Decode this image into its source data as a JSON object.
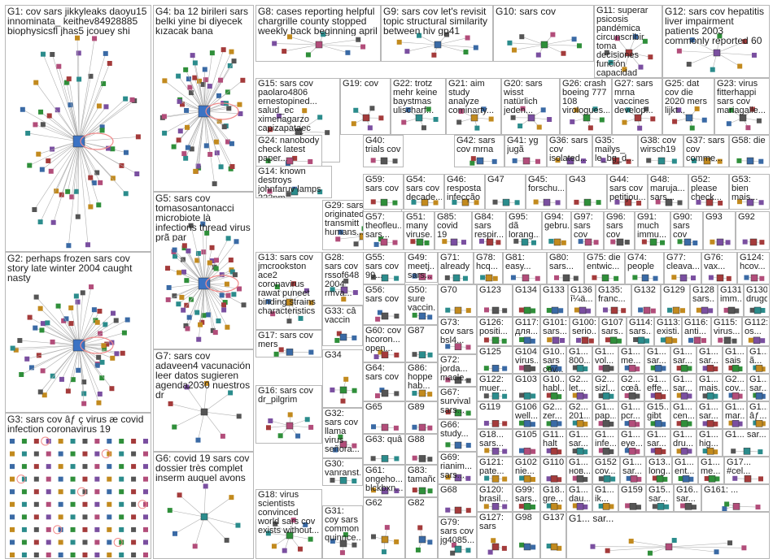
{
  "colors": {
    "edge": "#b0b0b0",
    "self_loop": "#f08a8a",
    "border": "#b8b8b8",
    "text": "#202020"
  },
  "groups": [
    {
      "id": "G1",
      "label": "G1: cov sars jikkyleaks daoyu15 innominata_ keithev84928885 biophysicsfl jhas5 jcouey shi"
    },
    {
      "id": "G2",
      "label": "G2: perhaps frozen sars cov story late winter 2004 caught nasty"
    },
    {
      "id": "G3",
      "label": "G3: sars cov âƒ ç virus æ covid infection coronavirus 19"
    },
    {
      "id": "G4",
      "label": "G4: ba 12 birileri sars belki yine bi diyecek kızacak bana"
    },
    {
      "id": "G5",
      "label": "G5: sars cov tomasosantonacci microbiote là infections thread virus prã par"
    },
    {
      "id": "G6",
      "label": "G6: covid 19 sars cov dossier très complet inserm auquel avons"
    },
    {
      "id": "G7",
      "label": "G7: sars cov adaveen4 vacunación leer datos sugieren agenda2030 nuestros dr"
    },
    {
      "id": "G8",
      "label": "G8: cases reporting helpful chargrille county stopped weekly back beginning april"
    },
    {
      "id": "G9",
      "label": "G9: sars cov let's revisit topic structural similarity between hiv gp41"
    },
    {
      "id": "G10",
      "label": "G10: sars cov"
    },
    {
      "id": "G11",
      "label": "G11: superar psicosis pandémica circunscribir toma decisiones función capacidad hospitalaria..."
    },
    {
      "id": "G12",
      "label": "G12: sars cov hepatitis liver impairment patients 2003 commonly reported 60"
    },
    {
      "id": "G13",
      "label": "G13: sars cov jmcrookston ace2 coronavirus rawat puneet binding strains characteristics"
    },
    {
      "id": "G14",
      "label": "G14: known destroys johnfaruv lamps 222nm don_milton drlapook umdpubliche..."
    },
    {
      "id": "G15",
      "label": "G15: sars cov paolaro4806 ernestopined... salud_ec ximenagarzo capizapataec marcosmolin..."
    },
    {
      "id": "G16",
      "label": "G16: sars cov dr_pilgrim"
    },
    {
      "id": "G17",
      "label": "G17: sars cov mers"
    },
    {
      "id": "G18",
      "label": "G18: virus scientists convinced world sars cov exists without..."
    },
    {
      "id": "G19",
      "label": "G19: cov"
    },
    {
      "id": "G20",
      "label": "G20: sars wisst natürlich jeden..."
    },
    {
      "id": "G21",
      "label": "G21: aim study analyze cominarty..."
    },
    {
      "id": "G22",
      "label": "G22: trotz mehr keine baystmas ulischarf..."
    },
    {
      "id": "G23",
      "label": "G23: virus fitterhappi sars cov mariagalle..."
    },
    {
      "id": "G24",
      "label": "G24: nanobody check latest paper..."
    },
    {
      "id": "G25",
      "label": "G25: dat cov die 2020 mers lijkt..."
    },
    {
      "id": "G26",
      "label": "G26: crash boeing 777 108 virologues..."
    },
    {
      "id": "G27",
      "label": "G27: sars mrna vaccines develop..."
    },
    {
      "id": "G28",
      "label": "G28: sars cov rssof648 2004 rmva..."
    },
    {
      "id": "G29",
      "label": "G29: sars cov originated transmitt humans..."
    },
    {
      "id": "G30",
      "label": "G30: vanranst..."
    },
    {
      "id": "G31",
      "label": "G31: coy sars common quinnce..."
    },
    {
      "id": "G32",
      "label": "G32: sars cov llama virus señora..."
    },
    {
      "id": "G33",
      "label": "G33: câ vaccin"
    },
    {
      "id": "G34",
      "label": "G34"
    },
    {
      "id": "G35",
      "label": "G35: mailys_ le_bg_d..."
    },
    {
      "id": "G36",
      "label": "G36: sars cov isolated..."
    },
    {
      "id": "G37",
      "label": "G37: sars cov comme..."
    },
    {
      "id": "G38",
      "label": "G38: cov wirsch19"
    },
    {
      "id": "G40",
      "label": "G40: trials cov"
    },
    {
      "id": "G41",
      "label": "G41: yg jugã"
    },
    {
      "id": "G42",
      "label": "G42: sars cov mrna"
    },
    {
      "id": "G43",
      "label": "G43"
    },
    {
      "id": "G44",
      "label": "G44: sars cov petitjou..."
    },
    {
      "id": "G45",
      "label": "G45: forschu..."
    },
    {
      "id": "G46",
      "label": "G46: resposta infecção"
    },
    {
      "id": "G47",
      "label": "G47"
    },
    {
      "id": "G48",
      "label": "G48: maruja... sars..."
    },
    {
      "id": "G49",
      "label": "G49: meetj... sars..."
    },
    {
      "id": "G50",
      "label": "G50: sure vaccin..."
    },
    {
      "id": "G51",
      "label": "G51: many viruse..."
    },
    {
      "id": "G52",
      "label": "G52: please check..."
    },
    {
      "id": "G53",
      "label": "G53: bien mais..."
    },
    {
      "id": "G54",
      "label": "G54: sars cov decade..."
    },
    {
      "id": "G55",
      "label": "G55: sars cov 99..."
    },
    {
      "id": "G56",
      "label": "G56: sars cov"
    },
    {
      "id": "G57",
      "label": "G57: theofleu... sars..."
    },
    {
      "id": "G58",
      "label": "G58: die"
    },
    {
      "id": "G59",
      "label": "G59: sars cov"
    },
    {
      "id": "G60",
      "label": "G60: cov hcoron... open..."
    },
    {
      "id": "G61",
      "label": "G61: ongeho... blckbxn..."
    },
    {
      "id": "G62",
      "label": "G62"
    },
    {
      "id": "G63",
      "label": "G63: quâ"
    },
    {
      "id": "G64",
      "label": "G64: sars cov"
    },
    {
      "id": "G65",
      "label": "G65"
    },
    {
      "id": "G66",
      "label": "G66: study..."
    },
    {
      "id": "G67",
      "label": "G67: survival sars..."
    },
    {
      "id": "G68",
      "label": "G68"
    },
    {
      "id": "G69",
      "label": "G69: rianim... sars..."
    },
    {
      "id": "G70",
      "label": "G70"
    },
    {
      "id": "G71",
      "label": "G71: already"
    },
    {
      "id": "G72",
      "label": "G72: jorda... macle..."
    },
    {
      "id": "G73",
      "label": "G73: cov sars bsl4..."
    },
    {
      "id": "G74",
      "label": "G74: people"
    },
    {
      "id": "G75",
      "label": "G75: die entwic..."
    },
    {
      "id": "G76",
      "label": "G76: vax..."
    },
    {
      "id": "G77",
      "label": "G77: cleava..."
    },
    {
      "id": "G78",
      "label": "G78: hcq..."
    },
    {
      "id": "G79",
      "label": "G79: sars cov jg4085..."
    },
    {
      "id": "G80",
      "label": "G80: sars..."
    },
    {
      "id": "G81",
      "label": "G81: easy..."
    },
    {
      "id": "G82",
      "label": "G82"
    },
    {
      "id": "G83",
      "label": "G83: tamaño"
    },
    {
      "id": "G84",
      "label": "G84: sars respir..."
    },
    {
      "id": "G85",
      "label": "G85: covid 19"
    },
    {
      "id": "G86",
      "label": "G86: hoppe hab..."
    },
    {
      "id": "G87",
      "label": "G87"
    },
    {
      "id": "G88",
      "label": "G88"
    },
    {
      "id": "G89",
      "label": "G89"
    },
    {
      "id": "G90",
      "label": "G90: sars cov"
    },
    {
      "id": "G91",
      "label": "G91: much immu..."
    },
    {
      "id": "G92",
      "label": "G92"
    },
    {
      "id": "G93",
      "label": "G93"
    },
    {
      "id": "G94",
      "label": "G94: gebru..."
    },
    {
      "id": "G95",
      "label": "G95: dã lorang..."
    },
    {
      "id": "G96",
      "label": "G96: sars cov"
    },
    {
      "id": "G97",
      "label": "G97: sars cov"
    },
    {
      "id": "G98",
      "label": "G98"
    },
    {
      "id": "G99",
      "label": "G99: sars..."
    },
    {
      "id": "G100",
      "label": "G100: serio..."
    },
    {
      "id": "G101",
      "label": "G101: sars..."
    },
    {
      "id": "G102",
      "label": "G102: nie..."
    },
    {
      "id": "G103",
      "label": "G103"
    },
    {
      "id": "G104",
      "label": "G104: virus..."
    },
    {
      "id": "G105",
      "label": "G105"
    },
    {
      "id": "G106",
      "label": "G106: well..."
    },
    {
      "id": "G107",
      "label": "G107: sars..."
    },
    {
      "id": "G110",
      "label": "G110"
    },
    {
      "id": "G112",
      "label": "G112: os..."
    },
    {
      "id": "G113",
      "label": "G113: existi..."
    },
    {
      "id": "G114",
      "label": "G114: sars..."
    },
    {
      "id": "G115",
      "label": "G115: virus..."
    },
    {
      "id": "G116",
      "label": "G116: anti..."
    },
    {
      "id": "G117",
      "label": "G117: для..."
    },
    {
      "id": "G118",
      "label": "G118: still..."
    },
    {
      "id": "G119",
      "label": "G119"
    },
    {
      "id": "G120",
      "label": "G120: brasil..."
    },
    {
      "id": "G121",
      "label": "G121: pate..."
    },
    {
      "id": "G122",
      "label": "G122: muer..."
    },
    {
      "id": "G123",
      "label": "G123"
    },
    {
      "id": "G124",
      "label": "G124: hcov..."
    },
    {
      "id": "G125",
      "label": "G125"
    },
    {
      "id": "G126",
      "label": "G126: positi..."
    },
    {
      "id": "G127",
      "label": "G127: sars"
    },
    {
      "id": "G128",
      "label": "G128: sars..."
    },
    {
      "id": "G129",
      "label": "G129"
    },
    {
      "id": "G130",
      "label": "G130: drugo"
    },
    {
      "id": "G131",
      "label": "G131: imm..."
    },
    {
      "id": "G132",
      "label": "G132"
    },
    {
      "id": "G133",
      "label": "G133"
    },
    {
      "id": "G134",
      "label": "G134"
    },
    {
      "id": "G135",
      "label": "G135: franc..."
    },
    {
      "id": "G136",
      "label": "G136: î¼ä..."
    },
    {
      "id": "G137",
      "label": "G137"
    },
    {
      "id": "G152",
      "label": "G152: cov..."
    },
    {
      "id": "G159",
      "label": "G159"
    },
    {
      "id": "G161",
      "label": "G161: ..."
    },
    {
      "id": "G10a",
      "label": "G10... sars cov..."
    },
    {
      "id": "G10b",
      "label": "G10... habl..."
    },
    {
      "id": "G11a",
      "label": "G11... halt"
    },
    {
      "id": "G18a",
      "label": "G18... sars..."
    },
    {
      "id": "G18b",
      "label": "G18... gre..."
    },
    {
      "id": "G1a",
      "label": "G1... 800..."
    },
    {
      "id": "G1b",
      "label": "G1... vol..."
    },
    {
      "id": "G1c",
      "label": "G1... me..."
    },
    {
      "id": "G1d",
      "label": "G1... sar..."
    },
    {
      "id": "G1e",
      "label": "G1... sar..."
    },
    {
      "id": "G1f",
      "label": "G1... sar..."
    },
    {
      "id": "G2a",
      "label": "G2... let..."
    },
    {
      "id": "G2b",
      "label": "G2... 201..."
    },
    {
      "id": "G2c",
      "label": "G2... sizl..."
    },
    {
      "id": "G2d",
      "label": "G2... cœâ..."
    },
    {
      "id": "G2e",
      "label": "G2... cov..."
    },
    {
      "id": "G2f",
      "label": "G2... zer..."
    },
    {
      "id": "G1g",
      "label": "G1... sais"
    },
    {
      "id": "G1h",
      "label": "G1... effe..."
    },
    {
      "id": "G1i",
      "label": "G1... sar..."
    },
    {
      "id": "G1j",
      "label": "G1... ã..."
    },
    {
      "id": "G1k",
      "label": "G1... mais..."
    },
    {
      "id": "G1l",
      "label": "G1... pap..."
    },
    {
      "id": "G1m",
      "label": "G1... pcr..."
    },
    {
      "id": "G15a",
      "label": "G15... gibt"
    },
    {
      "id": "G1n",
      "label": "G1... cen..."
    },
    {
      "id": "G1o",
      "label": "G1... sar..."
    },
    {
      "id": "G1p",
      "label": "G1... mar..."
    },
    {
      "id": "G1q",
      "label": "G1... âƒ..."
    },
    {
      "id": "G1r",
      "label": "G1... sar..."
    },
    {
      "id": "G1s",
      "label": "G1... infe..."
    },
    {
      "id": "G1t",
      "label": "G1... eye..."
    },
    {
      "id": "G1u",
      "label": "G1... sar..."
    },
    {
      "id": "G13a",
      "label": "G13... long..."
    },
    {
      "id": "G1v",
      "label": "G1... sar..."
    },
    {
      "id": "G1w",
      "label": "G1... dru..."
    },
    {
      "id": "G1x",
      "label": "G1... hig..."
    },
    {
      "id": "G1y",
      "label": "G1... sar..."
    },
    {
      "id": "G1z",
      "label": "G1... нов..."
    },
    {
      "id": "G1aa",
      "label": "G1... sar..."
    },
    {
      "id": "G1ab",
      "label": "G1... ent..."
    },
    {
      "id": "G1ac",
      "label": "G1... me..."
    },
    {
      "id": "G17a",
      "label": "G17... #cel..."
    },
    {
      "id": "G1ad",
      "label": "G1... dau..."
    },
    {
      "id": "G1ae",
      "label": "G1... ik..."
    },
    {
      "id": "G15b",
      "label": "G15... sar..."
    },
    {
      "id": "G16a",
      "label": "G16... sar..."
    },
    {
      "id": "G1af",
      "label": "G1... sar..."
    }
  ]
}
